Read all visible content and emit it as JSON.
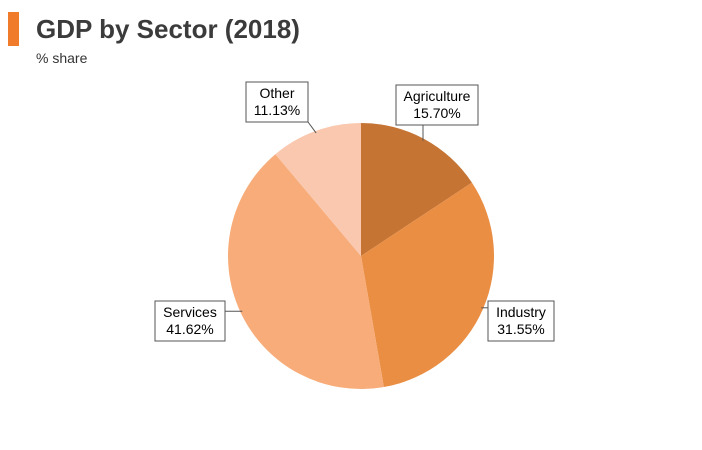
{
  "header": {
    "title": "GDP by Sector (2018)",
    "subtitle": "% share",
    "accent_color": "#f07c2b"
  },
  "chart_data": {
    "type": "pie",
    "title": "GDP by Sector (2018)",
    "subtitle": "% share",
    "start_angle_deg": 0,
    "direction": "clockwise",
    "slices": [
      {
        "label": "Agriculture",
        "value": 15.7,
        "value_label": "15.70%",
        "color": "#c57434"
      },
      {
        "label": "Industry",
        "value": 31.55,
        "value_label": "31.55%",
        "color": "#ea8e43"
      },
      {
        "label": "Services",
        "value": 41.62,
        "value_label": "41.62%",
        "color": "#f7ac79"
      },
      {
        "label": "Other",
        "value": 11.13,
        "value_label": "11.13%",
        "color": "#f9c8ae"
      }
    ]
  }
}
